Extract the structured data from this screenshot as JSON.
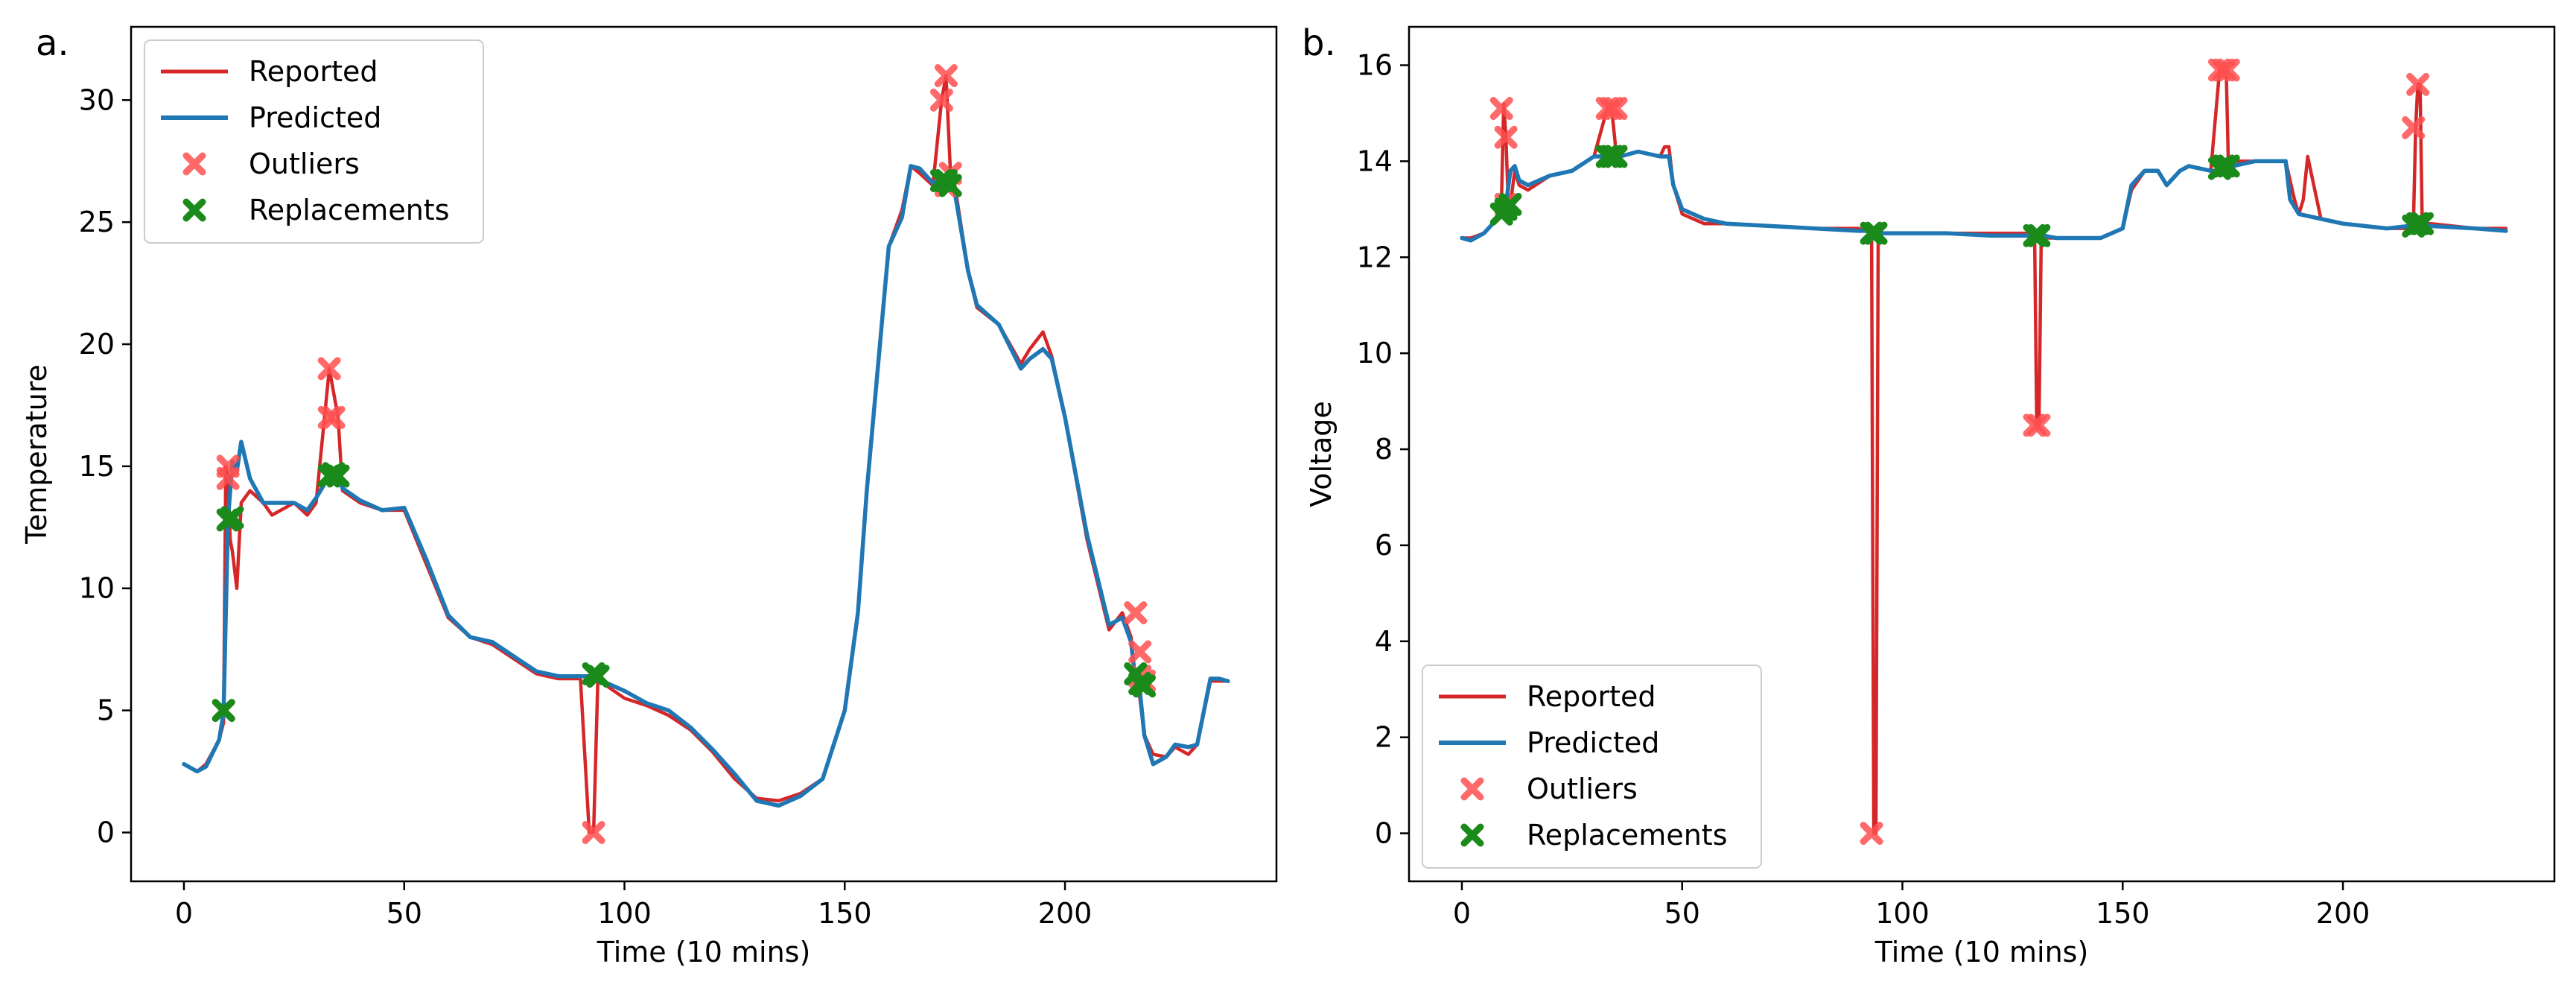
{
  "chart_data": [
    {
      "panel": "a.",
      "type": "line",
      "xlabel": "Time (10 mins)",
      "ylabel": "Temperature",
      "xlim": [
        -12,
        248
      ],
      "ylim": [
        -2,
        33
      ],
      "xticks": [
        0,
        50,
        100,
        150,
        200
      ],
      "yticks": [
        0,
        5,
        10,
        15,
        20,
        25,
        30
      ],
      "legend_position": "top-left",
      "legend": [
        "Reported",
        "Predicted",
        "Outliers",
        "Replacements"
      ],
      "colors": {
        "reported": "#d62728",
        "predicted": "#1f77b4",
        "outliers": "#ff5050",
        "replacements": "#1a8a1a"
      },
      "series": [
        {
          "name": "Reported",
          "x": [
            0,
            3,
            5,
            8,
            9,
            9.5,
            10,
            10.5,
            11,
            12,
            13,
            15,
            18,
            20,
            25,
            28,
            30,
            33,
            34,
            35,
            36,
            40,
            45,
            50,
            55,
            60,
            65,
            70,
            75,
            80,
            85,
            90,
            92,
            93,
            94,
            95,
            96,
            100,
            105,
            110,
            115,
            120,
            125,
            130,
            135,
            140,
            145,
            150,
            153,
            155,
            158,
            160,
            163,
            165,
            167,
            170,
            172,
            173,
            174,
            175,
            178,
            180,
            185,
            190,
            192,
            195,
            197,
            200,
            205,
            210,
            213,
            215,
            216,
            217,
            218,
            220,
            223,
            225,
            228,
            230,
            233,
            235,
            237
          ],
          "y": [
            2.8,
            2.5,
            2.8,
            3.8,
            4.5,
            15,
            14.5,
            12,
            11.5,
            10,
            13.5,
            14,
            13.5,
            13,
            13.5,
            13,
            13.5,
            19,
            18,
            17,
            14,
            13.5,
            13.2,
            13.2,
            11,
            8.8,
            8,
            7.7,
            7.1,
            6.5,
            6.3,
            6.3,
            0,
            0,
            6.5,
            6.3,
            6,
            5.5,
            5.2,
            4.8,
            4.2,
            3.3,
            2.2,
            1.4,
            1.3,
            1.6,
            2.2,
            5,
            9,
            14,
            20,
            24,
            25.5,
            27.3,
            27,
            26.5,
            30,
            31,
            27,
            26.5,
            23,
            21.5,
            20.8,
            19.2,
            19.8,
            20.5,
            19.5,
            17,
            12,
            8.3,
            9,
            8,
            6,
            5.5,
            4,
            3.2,
            3.1,
            3.5,
            3.2,
            3.6,
            6.2,
            6.2,
            6.2
          ]
        },
        {
          "name": "Predicted",
          "x": [
            0,
            3,
            5,
            8,
            9,
            10,
            11,
            12,
            13,
            15,
            18,
            20,
            25,
            28,
            30,
            33,
            34,
            35,
            36,
            40,
            45,
            50,
            55,
            60,
            65,
            70,
            75,
            80,
            85,
            90,
            93,
            95,
            100,
            105,
            110,
            115,
            120,
            125,
            130,
            135,
            140,
            145,
            150,
            153,
            155,
            158,
            160,
            163,
            165,
            167,
            170,
            172,
            173,
            174,
            175,
            178,
            180,
            185,
            190,
            192,
            195,
            197,
            200,
            205,
            210,
            213,
            215,
            216,
            217,
            218,
            220,
            223,
            225,
            228,
            230,
            233,
            235,
            237
          ],
          "y": [
            2.8,
            2.5,
            2.7,
            3.8,
            4.9,
            12.8,
            15.2,
            14.8,
            16,
            14.5,
            13.5,
            13.5,
            13.5,
            13.2,
            13.7,
            14.6,
            14.7,
            14.6,
            14.1,
            13.6,
            13.2,
            13.3,
            11.2,
            8.9,
            8,
            7.8,
            7.2,
            6.6,
            6.4,
            6.4,
            6.4,
            6.2,
            5.8,
            5.3,
            5,
            4.3,
            3.4,
            2.4,
            1.3,
            1.1,
            1.5,
            2.2,
            5,
            9,
            14,
            20,
            24,
            25.2,
            27.3,
            27.2,
            26.6,
            26.8,
            26.6,
            26.5,
            26.2,
            23,
            21.6,
            20.8,
            19,
            19.4,
            19.8,
            19.4,
            17,
            12.2,
            8.5,
            8.8,
            7.8,
            6.2,
            5.8,
            4,
            2.8,
            3.1,
            3.6,
            3.5,
            3.6,
            6.3,
            6.3,
            6.2
          ]
        }
      ],
      "outliers": {
        "x": [
          9,
          10,
          10,
          33,
          33,
          34,
          34,
          93,
          172,
          173,
          174,
          173,
          216,
          217,
          217,
          218
        ],
        "y": [
          5,
          15,
          14.5,
          19,
          17,
          17,
          14.7,
          0,
          30,
          31,
          27,
          26.5,
          9,
          7.4,
          6.4,
          6.2
        ]
      },
      "replacements": {
        "x": [
          9,
          10,
          11,
          33,
          34,
          35,
          93,
          94,
          172,
          173,
          174,
          216,
          217,
          218
        ],
        "y": [
          5,
          12.8,
          12.9,
          14.6,
          14.7,
          14.6,
          6.5,
          6.4,
          26.7,
          26.7,
          26.5,
          6.5,
          6.1,
          6
        ]
      }
    },
    {
      "panel": "b.",
      "type": "line",
      "xlabel": "Time (10 mins)",
      "ylabel": "Voltage",
      "xlim": [
        -12,
        248
      ],
      "ylim": [
        -1,
        16.8
      ],
      "xticks": [
        0,
        50,
        100,
        150,
        200
      ],
      "yticks": [
        0,
        2,
        4,
        6,
        8,
        10,
        12,
        14,
        16
      ],
      "legend_position": "bottom-left",
      "legend": [
        "Reported",
        "Predicted",
        "Outliers",
        "Replacements"
      ],
      "colors": {
        "reported": "#d62728",
        "predicted": "#1f77b4",
        "outliers": "#ff5050",
        "replacements": "#1a8a1a"
      },
      "series": [
        {
          "name": "Reported",
          "x": [
            0,
            2,
            5,
            8,
            9,
            9.5,
            10,
            10.5,
            11,
            12,
            13,
            15,
            20,
            25,
            30,
            33,
            33.5,
            34,
            35,
            36,
            40,
            45,
            46,
            47,
            48,
            50,
            55,
            60,
            70,
            80,
            90,
            93,
            93.5,
            94,
            94.5,
            95,
            100,
            110,
            120,
            130,
            130.5,
            131,
            131.5,
            132,
            135,
            140,
            145,
            150,
            152,
            155,
            158,
            160,
            163,
            165,
            170,
            172,
            172.5,
            173,
            173.5,
            174,
            175,
            180,
            185,
            187,
            189,
            190,
            191,
            192,
            195,
            200,
            210,
            215,
            216,
            216.5,
            217,
            217.5,
            218,
            220,
            230,
            237
          ],
          "y": [
            12.4,
            12.4,
            12.5,
            12.8,
            13.2,
            15.2,
            14.5,
            13.2,
            13.1,
            13.8,
            13.5,
            13.4,
            13.7,
            13.8,
            14.1,
            15.1,
            15.1,
            15.1,
            14.2,
            14.1,
            14.2,
            14.1,
            14.3,
            14.3,
            13.5,
            12.9,
            12.7,
            12.7,
            12.65,
            12.6,
            12.6,
            12.5,
            0,
            0,
            12.5,
            12.5,
            12.5,
            12.5,
            12.5,
            12.5,
            8.5,
            8.5,
            12.4,
            12.4,
            12.4,
            12.4,
            12.4,
            12.6,
            13.4,
            13.8,
            13.8,
            13.5,
            13.8,
            13.9,
            13.8,
            15.9,
            15.9,
            15.9,
            15.9,
            13.9,
            14,
            14,
            14,
            14,
            13.2,
            12.9,
            13.2,
            14.1,
            12.8,
            12.7,
            12.6,
            12.6,
            12.7,
            14.7,
            15.6,
            15.6,
            12.7,
            12.7,
            12.6,
            12.6
          ]
        },
        {
          "name": "Predicted",
          "x": [
            0,
            2,
            5,
            8,
            9,
            10,
            11,
            12,
            13,
            15,
            20,
            25,
            30,
            33,
            34,
            35,
            36,
            40,
            45,
            47,
            48,
            50,
            55,
            60,
            70,
            80,
            90,
            93,
            94,
            95,
            100,
            110,
            120,
            130,
            132,
            135,
            140,
            145,
            150,
            152,
            155,
            158,
            160,
            163,
            165,
            170,
            172,
            173,
            174,
            175,
            180,
            185,
            187,
            188,
            190,
            195,
            200,
            210,
            215,
            216,
            217,
            218,
            220,
            230,
            237
          ],
          "y": [
            12.4,
            12.35,
            12.5,
            12.8,
            13,
            13.1,
            13.8,
            13.9,
            13.6,
            13.5,
            13.7,
            13.8,
            14.1,
            14.1,
            14.1,
            14.1,
            14.1,
            14.2,
            14.1,
            14.1,
            13.5,
            13,
            12.8,
            12.7,
            12.65,
            12.6,
            12.55,
            12.55,
            12.5,
            12.5,
            12.5,
            12.5,
            12.45,
            12.45,
            12.45,
            12.4,
            12.4,
            12.4,
            12.6,
            13.5,
            13.8,
            13.8,
            13.5,
            13.8,
            13.9,
            13.8,
            13.8,
            13.9,
            13.9,
            13.9,
            14,
            14,
            14,
            13.2,
            12.9,
            12.8,
            12.7,
            12.6,
            12.65,
            12.65,
            12.7,
            12.7,
            12.65,
            12.6,
            12.55
          ]
        }
      ],
      "outliers": {
        "x": [
          9,
          10,
          10,
          33,
          34,
          35,
          93,
          130,
          131,
          172,
          173,
          174,
          216,
          217
        ],
        "y": [
          15.1,
          14.5,
          13.1,
          15.1,
          15.1,
          15.1,
          0,
          8.5,
          8.5,
          15.9,
          15.9,
          15.9,
          14.7,
          15.6
        ]
      },
      "replacements": {
        "x": [
          9,
          10,
          11,
          33,
          34,
          35,
          93,
          94,
          130,
          131,
          172,
          173,
          174,
          216,
          217,
          218
        ],
        "y": [
          12.9,
          13,
          13.1,
          14.1,
          14.1,
          14.1,
          12.5,
          12.5,
          12.45,
          12.45,
          13.85,
          13.9,
          13.9,
          12.65,
          12.7,
          12.7
        ]
      }
    }
  ]
}
